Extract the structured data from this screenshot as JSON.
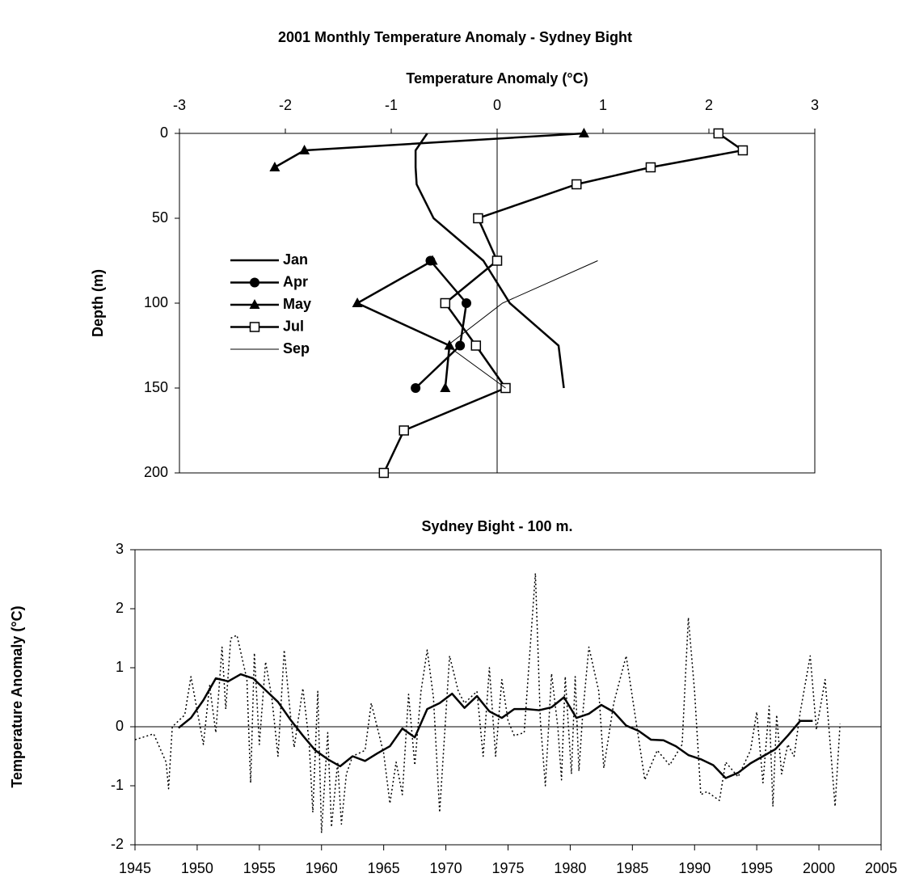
{
  "chart_data": [
    {
      "type": "profile",
      "title": "2001 Monthly Temperature Anomaly - Sydney Bight",
      "x_label": "Temperature Anomaly (°C)",
      "y_label": "Depth (m)",
      "xlim": [
        -3,
        3
      ],
      "xticks": [
        -3,
        -2,
        -1,
        0,
        1,
        2,
        3
      ],
      "ylim": [
        0,
        200
      ],
      "yticks": [
        0,
        50,
        100,
        150,
        200
      ],
      "y_inverted": true,
      "x_axis_position": "top",
      "legend": "left",
      "series": [
        {
          "name": "Jan",
          "color": "#000000",
          "marker": "none",
          "line_width": 2.5,
          "depths": [
            0,
            10,
            20,
            30,
            50,
            75,
            100,
            125,
            150
          ],
          "values": [
            -0.66,
            -0.77,
            -0.77,
            -0.76,
            -0.6,
            -0.13,
            0.12,
            0.58,
            0.63
          ]
        },
        {
          "name": "Apr",
          "color": "#000000",
          "marker": "circle",
          "line_width": 2.5,
          "depths": [
            75,
            100,
            125,
            150
          ],
          "values": [
            -0.63,
            -0.29,
            -0.35,
            -0.77
          ]
        },
        {
          "name": "May",
          "color": "#000000",
          "marker": "triangle",
          "line_width": 2.5,
          "depths": [
            0,
            10,
            20,
            null,
            75,
            100,
            125,
            150
          ],
          "values": [
            0.82,
            -1.82,
            -2.1,
            null,
            -0.61,
            -1.32,
            -0.45,
            -0.49
          ]
        },
        {
          "name": "Jul",
          "color": "#000000",
          "marker": "square",
          "line_width": 2.5,
          "depths": [
            0,
            10,
            20,
            30,
            50,
            75,
            100,
            125,
            150,
            175,
            200
          ],
          "values": [
            2.09,
            2.32,
            1.45,
            0.75,
            -0.18,
            0,
            -0.49,
            -0.2,
            0.08,
            -0.88,
            -1.07
          ]
        },
        {
          "name": "Sep",
          "color": "#000000",
          "marker": "none",
          "line_width": 1,
          "depths": [
            75,
            100,
            125,
            150
          ],
          "values": [
            0.95,
            0.05,
            -0.47,
            0.08
          ]
        }
      ]
    },
    {
      "type": "line",
      "title": "Sydney Bight - 100 m.",
      "y_label": "Temperature Anomaly (°C)",
      "xlim": [
        1945,
        2005
      ],
      "xticks": [
        1945,
        1950,
        1955,
        1960,
        1965,
        1970,
        1975,
        1980,
        1985,
        1990,
        1995,
        2000,
        2005
      ],
      "ylim": [
        -2,
        3
      ],
      "yticks": [
        -2,
        -1,
        0,
        1,
        2,
        3
      ],
      "series": [
        {
          "color": "#000000",
          "dash": "dotted",
          "line_width": 1.5,
          "x": [
            1945,
            1946.5,
            1947.5,
            1947.7,
            1948,
            1949,
            1949.5,
            1950.5,
            1951,
            1951.5,
            1952,
            1952.3,
            1952.7,
            1953.2,
            1954,
            1954.3,
            1954.6,
            1955,
            1955.5,
            1956,
            1956.5,
            1957,
            1957.5,
            1957.8,
            1958.5,
            1959,
            1959.3,
            1959.7,
            1960,
            1960.5,
            1960.8,
            1961.3,
            1961.6,
            1962,
            1962.5,
            1963.5,
            1964,
            1965,
            1965.5,
            1966,
            1966.5,
            1967,
            1967.5,
            1968,
            1968.5,
            1969,
            1969.5,
            1970.3,
            1971,
            1971.5,
            1972,
            1972.5,
            1973,
            1973.5,
            1974,
            1974.5,
            1975,
            1975.5,
            1976.3,
            1977.2,
            1977.6,
            1978,
            1978.5,
            1979,
            1979.3,
            1979.6,
            1980.1,
            1980.4,
            1980.7,
            1981,
            1981.5,
            1982.3,
            1982.7,
            1983.5,
            1984.5,
            1985.5,
            1986,
            1987,
            1988,
            1989,
            1989.5,
            1990,
            1990.5,
            1991,
            1992,
            1992.5,
            1993.5,
            1994.5,
            1995,
            1995.5,
            1996,
            1996.3,
            1996.6,
            1997,
            1997.5,
            1998,
            1998.5,
            1999.3,
            1999.8,
            2000.5,
            2001.3,
            2001.7
          ],
          "values": [
            -0.22,
            -0.12,
            -0.6,
            -1.05,
            0,
            0.2,
            0.85,
            -0.3,
            0.7,
            -0.1,
            1.35,
            0.3,
            1.5,
            1.55,
            0.8,
            -0.95,
            1.25,
            -0.3,
            1.1,
            0.5,
            -0.5,
            1.3,
            0.2,
            -0.35,
            0.65,
            -0.25,
            -1.45,
            0.6,
            -1.8,
            -0.1,
            -1.7,
            -0.6,
            -1.65,
            -0.8,
            -0.5,
            -0.4,
            0.4,
            -0.45,
            -1.3,
            -0.6,
            -1.15,
            0.55,
            -0.65,
            0.6,
            1.3,
            0.5,
            -1.45,
            1.2,
            0.6,
            0.4,
            0.5,
            0.6,
            -0.5,
            1,
            -0.5,
            0.8,
            0.1,
            -0.15,
            -0.1,
            2.6,
            0.1,
            -1,
            0.9,
            0,
            -0.9,
            0.85,
            -0.8,
            0.85,
            -0.75,
            0.2,
            1.35,
            0.6,
            -0.7,
            0.4,
            1.2,
            -0.2,
            -0.9,
            -0.4,
            -0.65,
            -0.3,
            1.85,
            0.6,
            -1.15,
            -1.1,
            -1.25,
            -0.6,
            -0.85,
            -0.4,
            0.25,
            -0.95,
            0.35,
            -1.35,
            0.2,
            -0.8,
            -0.3,
            -0.5,
            0.25,
            1.2,
            -0.05,
            0.8,
            -1.35,
            0.05
          ]
        },
        {
          "color": "#000000",
          "dash": "solid",
          "line_width": 2.5,
          "x": [
            1948.5,
            1949.5,
            1950.5,
            1951.5,
            1952.5,
            1953.5,
            1954.5,
            1955.5,
            1956.5,
            1957.5,
            1958.5,
            1959.5,
            1960.5,
            1961.5,
            1962.5,
            1963.5,
            1964.5,
            1965.5,
            1966.5,
            1967.5,
            1968.5,
            1969.5,
            1970.5,
            1971.5,
            1972.5,
            1973.5,
            1974.5,
            1975.5,
            1976.5,
            1977.5,
            1978.5,
            1979.5,
            1980.5,
            1981.5,
            1982.5,
            1983.5,
            1984.5,
            1985.5,
            1986.5,
            1987.5,
            1988.5,
            1989.5,
            1990.5,
            1991.5,
            1992.5,
            1993.5,
            1994.5,
            1995.5,
            1996.5,
            1997.5,
            1998.5,
            1999.5
          ],
          "values": [
            -0.02,
            0.15,
            0.45,
            0.82,
            0.77,
            0.89,
            0.82,
            0.62,
            0.42,
            0.12,
            -0.15,
            -0.4,
            -0.55,
            -0.67,
            -0.5,
            -0.58,
            -0.45,
            -0.33,
            -0.03,
            -0.18,
            0.3,
            0.4,
            0.56,
            0.32,
            0.52,
            0.26,
            0.15,
            0.3,
            0.3,
            0.28,
            0.33,
            0.5,
            0.15,
            0.22,
            0.37,
            0.25,
            0.02,
            -0.07,
            -0.22,
            -0.23,
            -0.33,
            -0.48,
            -0.55,
            -0.65,
            -0.87,
            -0.78,
            -0.62,
            -0.5,
            -0.38,
            -0.15,
            0.1,
            0.1
          ]
        }
      ]
    }
  ]
}
